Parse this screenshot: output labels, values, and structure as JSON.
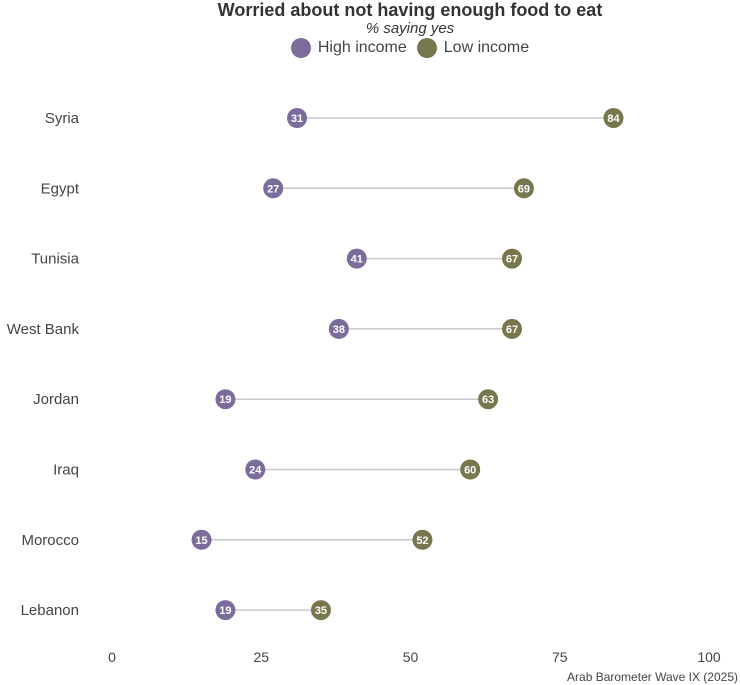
{
  "chart_data": {
    "type": "dumbbell",
    "title": "Worried about not having enough food to eat",
    "subtitle": "% saying yes",
    "source": "Arab Barometer Wave IX (2025)",
    "xlim": [
      0,
      100
    ],
    "x_ticks": [
      0,
      25,
      50,
      75,
      100
    ],
    "grid": false,
    "legend_position": "top",
    "categories": [
      "Syria",
      "Egypt",
      "Tunisia",
      "West Bank",
      "Jordan",
      "Iraq",
      "Morocco",
      "Lebanon"
    ],
    "series": [
      {
        "name": "High income",
        "color": "#7b6c9b",
        "values": [
          31,
          27,
          41,
          38,
          19,
          24,
          15,
          19
        ]
      },
      {
        "name": "Low income",
        "color": "#77764d",
        "values": [
          84,
          69,
          67,
          67,
          63,
          60,
          52,
          35
        ]
      }
    ]
  }
}
